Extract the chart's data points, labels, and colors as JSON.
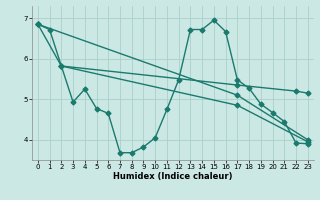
{
  "xlabel": "Humidex (Indice chaleur)",
  "xlim": [
    -0.5,
    23.5
  ],
  "ylim": [
    3.5,
    7.3
  ],
  "yticks": [
    4,
    5,
    6,
    7
  ],
  "xticks": [
    0,
    1,
    2,
    3,
    4,
    5,
    6,
    7,
    8,
    9,
    10,
    11,
    12,
    13,
    14,
    15,
    16,
    17,
    18,
    19,
    20,
    21,
    22,
    23
  ],
  "bg_color": "#cce8e4",
  "grid_color": "#aad0cc",
  "line_color": "#1a7a6e",
  "line_width": 1.0,
  "marker": "D",
  "marker_size": 2.5,
  "line1_x": [
    0,
    1,
    2,
    3,
    4,
    5,
    6,
    7,
    8,
    9,
    10,
    11,
    12,
    13,
    14,
    15,
    16,
    17,
    18,
    19,
    20,
    21,
    22,
    23
  ],
  "line1_y": [
    6.85,
    6.72,
    5.82,
    4.93,
    5.25,
    4.77,
    4.65,
    3.68,
    3.68,
    3.82,
    4.05,
    4.75,
    5.48,
    6.72,
    6.72,
    6.95,
    6.67,
    5.48,
    5.27,
    4.88,
    4.67,
    4.45,
    3.92,
    3.9
  ],
  "line2_x": [
    0,
    2,
    17,
    22,
    23
  ],
  "line2_y": [
    6.85,
    5.82,
    5.35,
    5.2,
    5.15
  ],
  "line3_x": [
    0,
    17,
    23
  ],
  "line3_y": [
    6.85,
    5.1,
    4.0
  ],
  "line4_x": [
    2,
    17,
    23
  ],
  "line4_y": [
    5.82,
    4.85,
    3.95
  ]
}
